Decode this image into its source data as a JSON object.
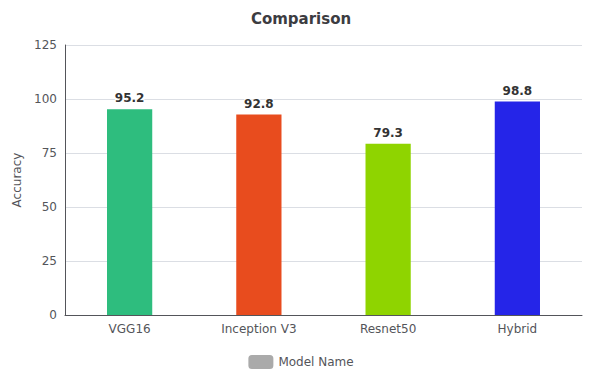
{
  "chart_data": {
    "type": "bar",
    "title": "Comparison",
    "categories": [
      "VGG16",
      "Inception V3",
      "Resnet50",
      "Hybrid"
    ],
    "series": [
      {
        "name": "Model Name",
        "color": "#aaaaaa",
        "colors": [
          "#2ebd7e",
          "#e84c1e",
          "#8fd400",
          "#2525e8"
        ],
        "values": [
          95.2,
          92.8,
          79.3,
          98.8
        ]
      }
    ],
    "ylabel": "Accuracy",
    "ylim": [
      0,
      125
    ],
    "yticks": [
      0,
      25,
      50,
      75,
      100,
      125
    ],
    "grid": true,
    "data_labels": true,
    "legend": "bottom"
  }
}
